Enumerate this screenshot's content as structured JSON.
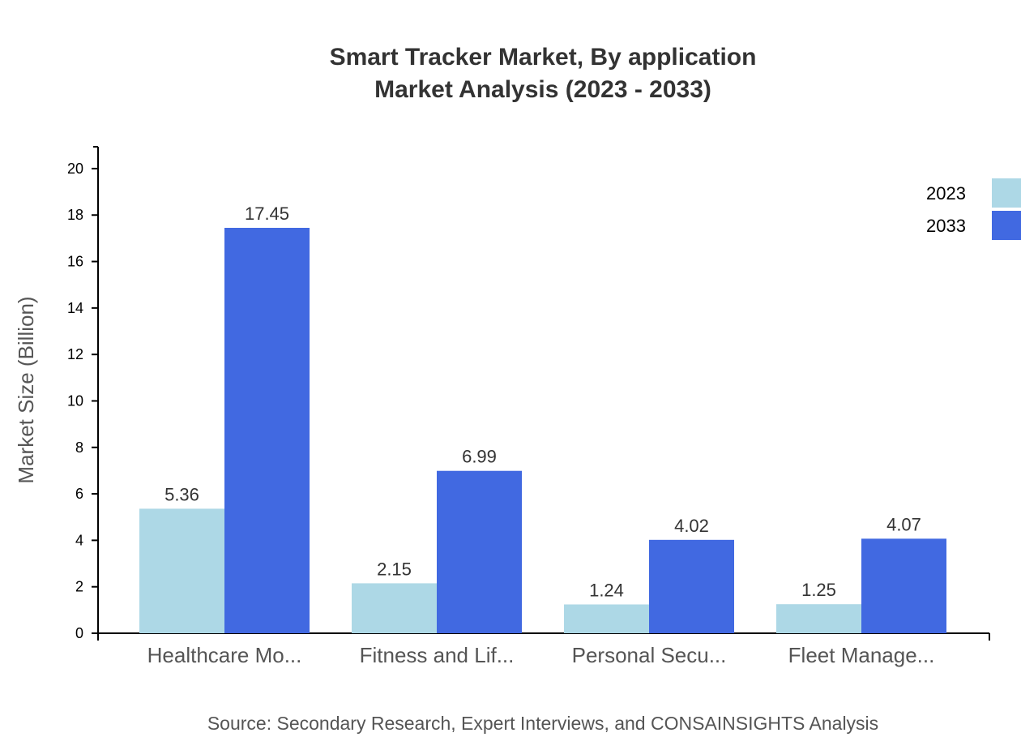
{
  "chart_data": {
    "type": "bar",
    "title": "Smart Tracker Market, By application",
    "subtitle": "Market Analysis (2023 - 2033)",
    "ylabel": "Market Size (Billion)",
    "xlabel": "",
    "ylim": [
      0,
      20.94
    ],
    "yticks": [
      0,
      2,
      4,
      6,
      8,
      10,
      12,
      14,
      16,
      18,
      20
    ],
    "categories": [
      "Healthcare Mo...",
      "Fitness and Lif...",
      "Personal Secu...",
      "Fleet Manage..."
    ],
    "series": [
      {
        "name": "2023",
        "color": "#add8e6",
        "values": [
          5.36,
          2.15,
          1.24,
          1.25
        ]
      },
      {
        "name": "2033",
        "color": "#4169e1",
        "values": [
          17.45,
          6.99,
          4.02,
          4.07
        ]
      }
    ],
    "legend": "top-right",
    "grid": false,
    "source": "Source: Secondary Research, Expert Interviews, and CONSAINSIGHTS Analysis"
  }
}
